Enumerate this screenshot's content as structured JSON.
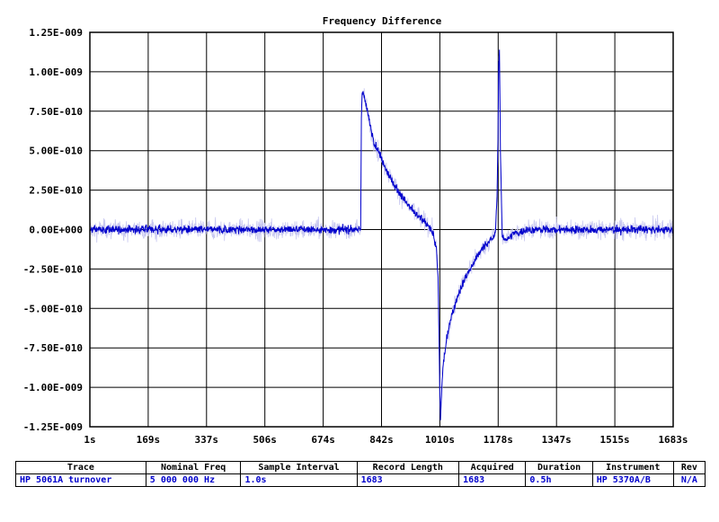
{
  "chart_data": {
    "type": "line",
    "title": "Frequency Difference",
    "xlabel": "",
    "ylabel": "",
    "xlim": [
      1,
      1683
    ],
    "ylim": [
      -1.25e-09,
      1.25e-09
    ],
    "x_ticks": [
      "1s",
      "169s",
      "337s",
      "506s",
      "674s",
      "842s",
      "1010s",
      "1178s",
      "1347s",
      "1515s",
      "1683s"
    ],
    "y_ticks": [
      "1.25E-009",
      "1.00E-009",
      "7.50E-010",
      "5.00E-010",
      "2.50E-010",
      "0.00E+000",
      "-2.50E-010",
      "-5.00E-010",
      "-7.50E-010",
      "-1.00E-009",
      "-1.25E-009"
    ],
    "grid": true,
    "colors": {
      "trace": "#0000cc",
      "raw": "#c8c8f0",
      "grid": "#000000"
    },
    "series": [
      {
        "x": [
          1,
          100,
          200,
          300,
          400,
          500,
          600,
          700,
          770,
          782,
          784,
          786,
          790,
          800,
          810,
          820,
          840,
          860,
          880,
          900,
          920,
          940,
          960,
          980,
          990,
          1000,
          1005,
          1010,
          1012,
          1014,
          1016,
          1020,
          1030,
          1040,
          1060,
          1080,
          1100,
          1120,
          1140,
          1160,
          1170,
          1175,
          1178,
          1180,
          1182,
          1185,
          1190,
          1200,
          1210,
          1220,
          1240,
          1260,
          1300,
          1350,
          1400,
          1450,
          1500,
          1550,
          1600,
          1650,
          1683
        ],
        "y": [
          0.0,
          0.0,
          0.0,
          0.0,
          0.0,
          0.0,
          0.0,
          0.0,
          0.0,
          0.0,
          7e-10,
          8.8e-10,
          8.6e-10,
          7.6e-10,
          6.5e-10,
          5.6e-10,
          4.6e-10,
          3.6e-10,
          2.8e-10,
          2.1e-10,
          1.5e-10,
          1e-10,
          6e-11,
          2e-11,
          -2e-11,
          -1.2e-10,
          -3e-10,
          -1e-09,
          -1.2e-09,
          -1.1e-09,
          -1e-09,
          -8.5e-10,
          -7e-10,
          -5.8e-10,
          -4.3e-10,
          -3.2e-10,
          -2.4e-10,
          -1.6e-10,
          -1e-10,
          -6e-11,
          -3e-11,
          2e-10,
          6e-10,
          1.06e-09,
          1.12e-09,
          5e-10,
          -5e-11,
          -6e-11,
          -5e-11,
          -3e-11,
          -2e-11,
          0.0,
          0.0,
          0.0,
          0.0,
          0.0,
          0.0,
          0.0,
          0.0,
          0.0,
          0.0
        ]
      }
    ]
  },
  "table": {
    "headers": [
      "Trace",
      "Nominal Freq",
      "Sample Interval",
      "Record Length",
      "Acquired",
      "Duration",
      "Instrument",
      "Rev"
    ],
    "values": [
      "HP 5061A turnover",
      "5 000 000 Hz",
      "1.0s",
      "1683",
      "1683",
      "0.5h",
      "HP 5370A/B",
      "N/A"
    ]
  }
}
